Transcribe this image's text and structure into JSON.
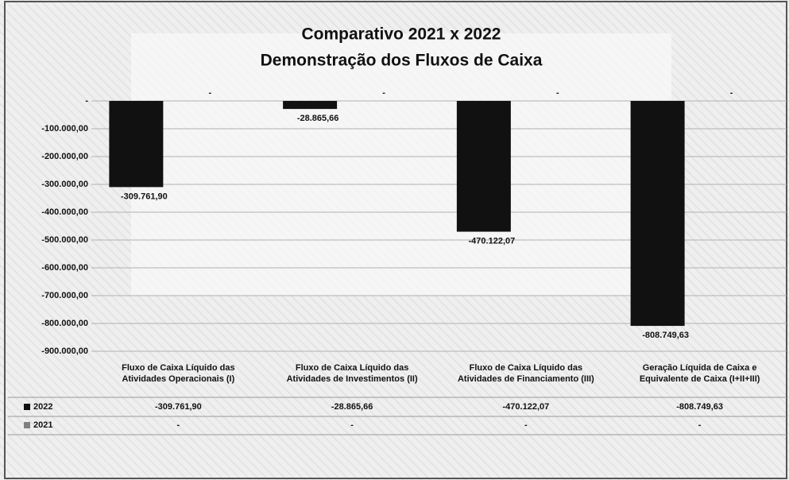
{
  "chart_data": {
    "type": "bar",
    "title": "Comparativo 2021 x 2022",
    "subtitle": "Demonstração dos Fluxos de Caixa",
    "categories": [
      "Fluxo de Caixa Líquido das Atividades Operacionais (I)",
      "Fluxo de Caixa Líquido das Atividades de Investimentos (II)",
      "Fluxo de Caixa Líquido das Atividades de Financiamento (III)",
      "Geração Líquida de Caixa e Equivalente de Caixa (I+II+III)"
    ],
    "series": [
      {
        "name": "2022",
        "color": "#111111",
        "values": [
          -309761.9,
          -28865.66,
          -470122.07,
          -808749.63
        ],
        "value_labels": [
          "-309.761,90",
          "-28.865,66",
          "-470.122,07",
          "-808.749,63"
        ]
      },
      {
        "name": "2021",
        "color": "#7f7f7f",
        "values": [
          0,
          0,
          0,
          0
        ],
        "value_labels": [
          "-",
          "-",
          "-",
          "-"
        ]
      }
    ],
    "ylim": [
      -900000,
      0
    ],
    "yticks": [
      {
        "value": 0,
        "label": "-"
      },
      {
        "value": -100000,
        "label": "-100.000,00"
      },
      {
        "value": -200000,
        "label": "-200.000,00"
      },
      {
        "value": -300000,
        "label": "-300.000,00"
      },
      {
        "value": -400000,
        "label": "-400.000,00"
      },
      {
        "value": -500000,
        "label": "-500.000,00"
      },
      {
        "value": -600000,
        "label": "-600.000,00"
      },
      {
        "value": -700000,
        "label": "-700.000,00"
      },
      {
        "value": -800000,
        "label": "-800.000,00"
      },
      {
        "value": -900000,
        "label": "-900.000,00"
      }
    ],
    "grid": true
  }
}
